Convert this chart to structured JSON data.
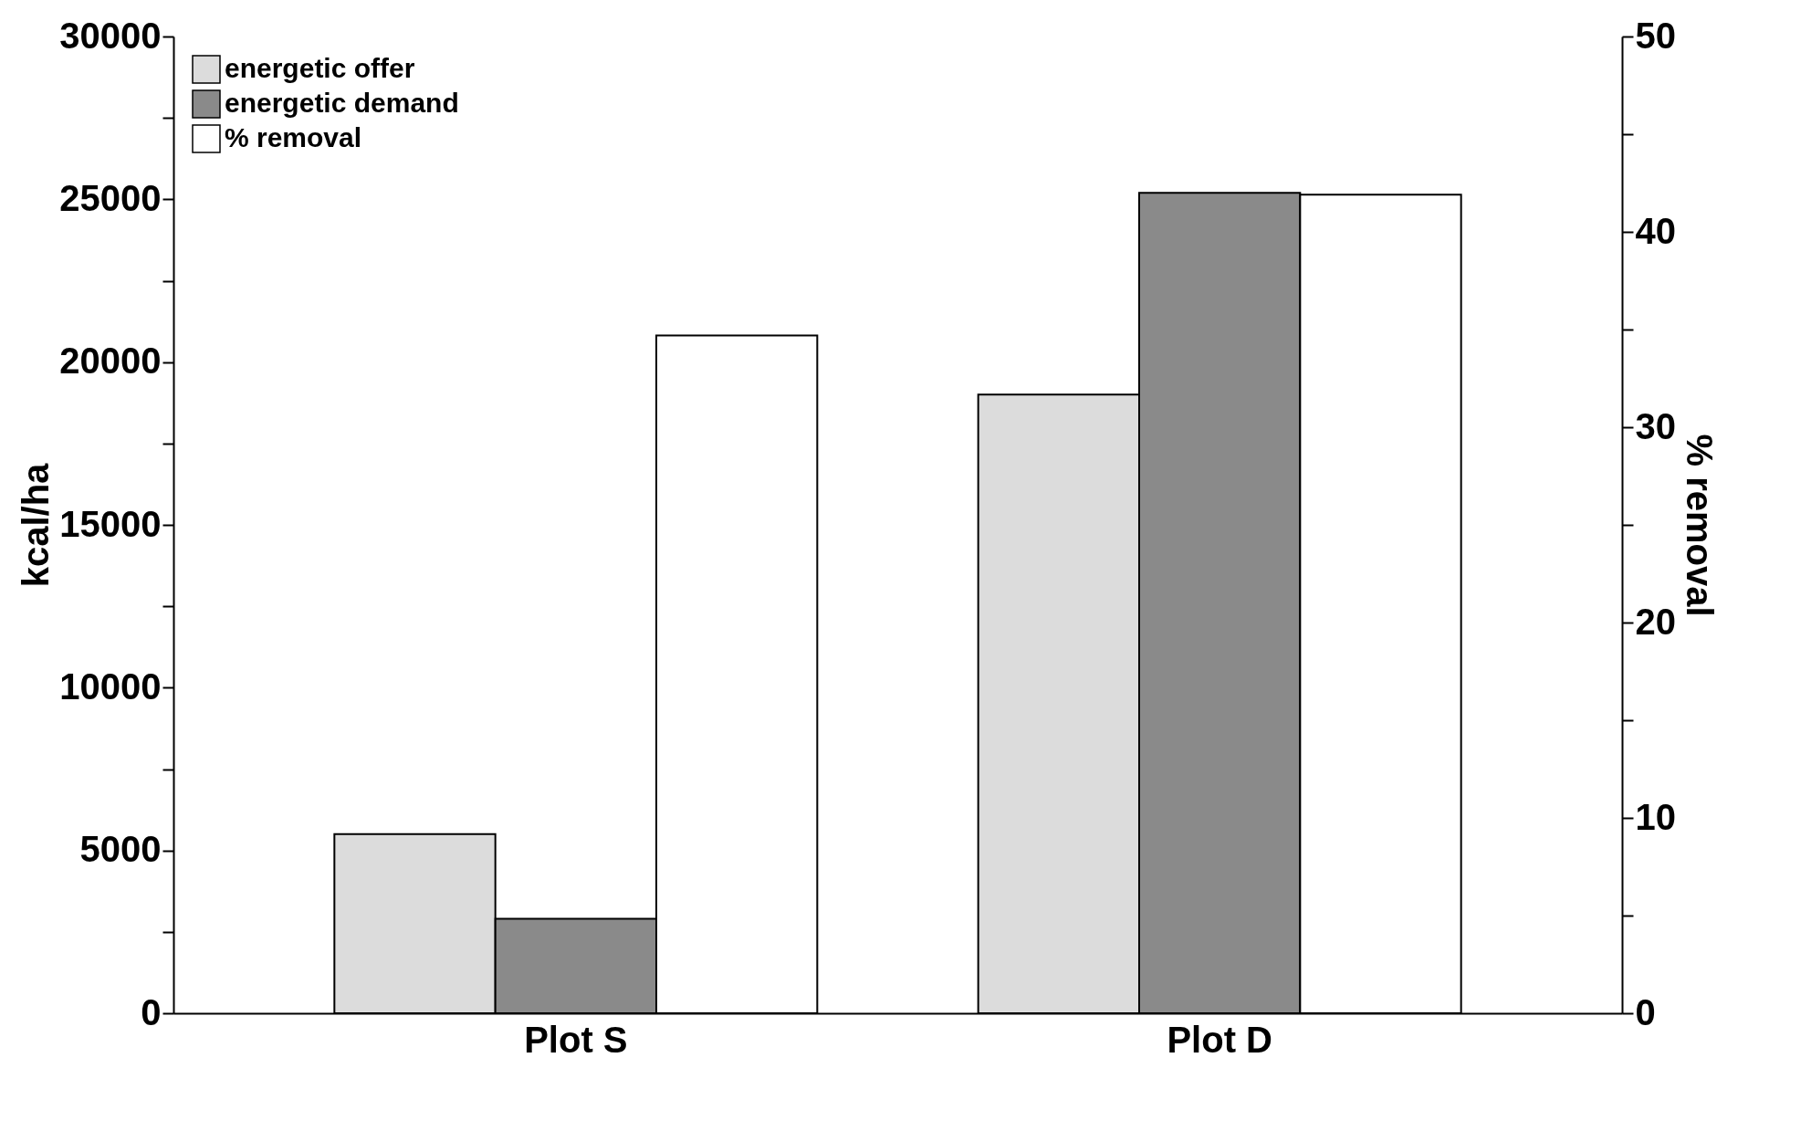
{
  "chart_data": {
    "type": "bar",
    "xlabel": null,
    "ylabel": "kcal/ha",
    "y2label": "% removal",
    "categories": [
      "Plot S",
      "Plot D"
    ],
    "series": [
      {
        "name": "energetic offer",
        "color": "#dcdcdc",
        "values": [
          5500,
          19000
        ]
      },
      {
        "name": "energetic demand",
        "color": "#8a8a8a",
        "values": [
          2900,
          25200
        ]
      },
      {
        "name": "% removal",
        "color": "#ffffff",
        "values": [
          34.7,
          41.9
        ],
        "axis": "y2"
      }
    ],
    "ylim": [
      0,
      30000
    ],
    "yticks": [
      0,
      {
        "value": 2500,
        "label": null
      },
      5000,
      {
        "value": 7500,
        "label": null
      },
      10000,
      {
        "value": 12500,
        "label": null
      },
      15000,
      {
        "value": 17500,
        "label": null
      },
      20000,
      {
        "value": 22500,
        "label": null
      },
      25000,
      {
        "value": 27500,
        "label": null
      },
      30000
    ],
    "y2lim": [
      0,
      50
    ],
    "y2ticks": [
      0,
      {
        "value": 5,
        "label": null
      },
      10,
      {
        "value": 15,
        "label": null
      },
      20,
      {
        "value": 25,
        "label": null
      },
      30,
      {
        "value": 35,
        "label": null
      },
      40,
      {
        "value": 45,
        "label": null
      },
      50
    ],
    "legend": "top left",
    "grid": false
  }
}
